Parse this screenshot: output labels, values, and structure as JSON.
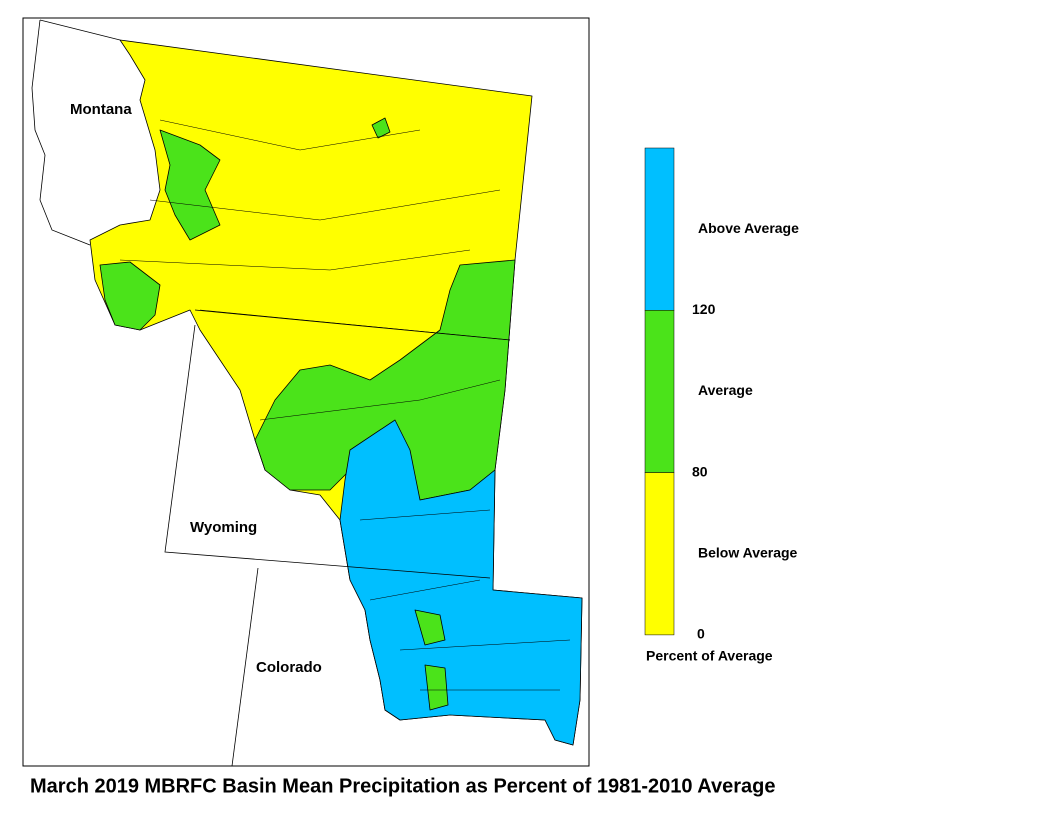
{
  "title": "March 2019 MBRFC Basin Mean Precipitation as Percent of 1981-2010 Average",
  "map": {
    "states": [
      "Montana",
      "Wyoming",
      "Colorado"
    ]
  },
  "legend": {
    "title": "Percent of Average",
    "classes": [
      {
        "label": "Above Average",
        "color": "#00bfff"
      },
      {
        "label": "Average",
        "color": "#4be31a"
      },
      {
        "label": "Below Average",
        "color": "#ffff00"
      }
    ],
    "breaks": [
      120,
      80,
      0
    ]
  }
}
